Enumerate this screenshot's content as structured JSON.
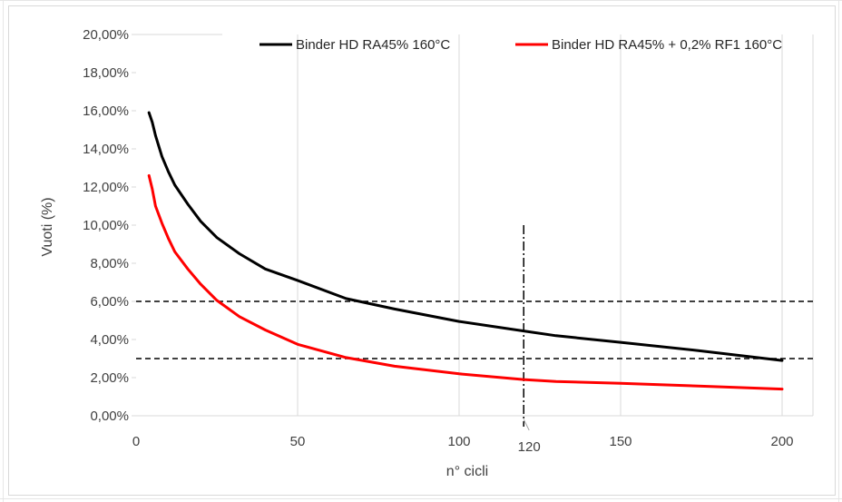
{
  "chart_data": {
    "type": "line",
    "title": "",
    "xlabel": "n° cicli",
    "ylabel": "Vuoti (%)",
    "xlim": [
      0,
      210
    ],
    "ylim": [
      0,
      20
    ],
    "x_ticks": [
      "0",
      "50",
      "100",
      "150",
      "200"
    ],
    "x_tick_values": [
      0,
      50,
      100,
      150,
      200
    ],
    "y_ticks": [
      "0,00%",
      "2,00%",
      "4,00%",
      "6,00%",
      "8,00%",
      "10,00%",
      "12,00%",
      "14,00%",
      "16,00%",
      "18,00%",
      "20,00%"
    ],
    "y_tick_values": [
      0,
      2,
      4,
      6,
      8,
      10,
      12,
      14,
      16,
      18,
      20
    ],
    "grid": "vertical",
    "legend_position": "top",
    "series": [
      {
        "name": "Binder HD RA45% 160°C",
        "color": "#000000",
        "points": [
          [
            4,
            15.9
          ],
          [
            5,
            15.4
          ],
          [
            6,
            14.7
          ],
          [
            8,
            13.6
          ],
          [
            10,
            12.8
          ],
          [
            12,
            12.1
          ],
          [
            16,
            11.1
          ],
          [
            20,
            10.2
          ],
          [
            25,
            9.35
          ],
          [
            32,
            8.5
          ],
          [
            40,
            7.7
          ],
          [
            50,
            7.1
          ],
          [
            65,
            6.15
          ],
          [
            80,
            5.6
          ],
          [
            100,
            4.95
          ],
          [
            120,
            4.45
          ],
          [
            130,
            4.2
          ],
          [
            150,
            3.85
          ],
          [
            175,
            3.4
          ],
          [
            200,
            2.9
          ]
        ]
      },
      {
        "name": "Binder HD RA45% + 0,2% RF1 160°C",
        "color": "#ff0000",
        "points": [
          [
            4,
            12.6
          ],
          [
            5,
            11.9
          ],
          [
            6,
            11.0
          ],
          [
            8,
            10.1
          ],
          [
            10,
            9.3
          ],
          [
            12,
            8.6
          ],
          [
            16,
            7.7
          ],
          [
            20,
            6.9
          ],
          [
            25,
            6.05
          ],
          [
            32,
            5.2
          ],
          [
            40,
            4.5
          ],
          [
            50,
            3.75
          ],
          [
            65,
            3.05
          ],
          [
            80,
            2.6
          ],
          [
            100,
            2.2
          ],
          [
            120,
            1.9
          ],
          [
            130,
            1.8
          ],
          [
            150,
            1.7
          ],
          [
            175,
            1.55
          ],
          [
            200,
            1.4
          ]
        ]
      }
    ],
    "reference_lines": {
      "horizontal": [
        6,
        3
      ],
      "vertical": [
        {
          "x": 120,
          "y_top": 10,
          "label": "120"
        }
      ]
    }
  }
}
